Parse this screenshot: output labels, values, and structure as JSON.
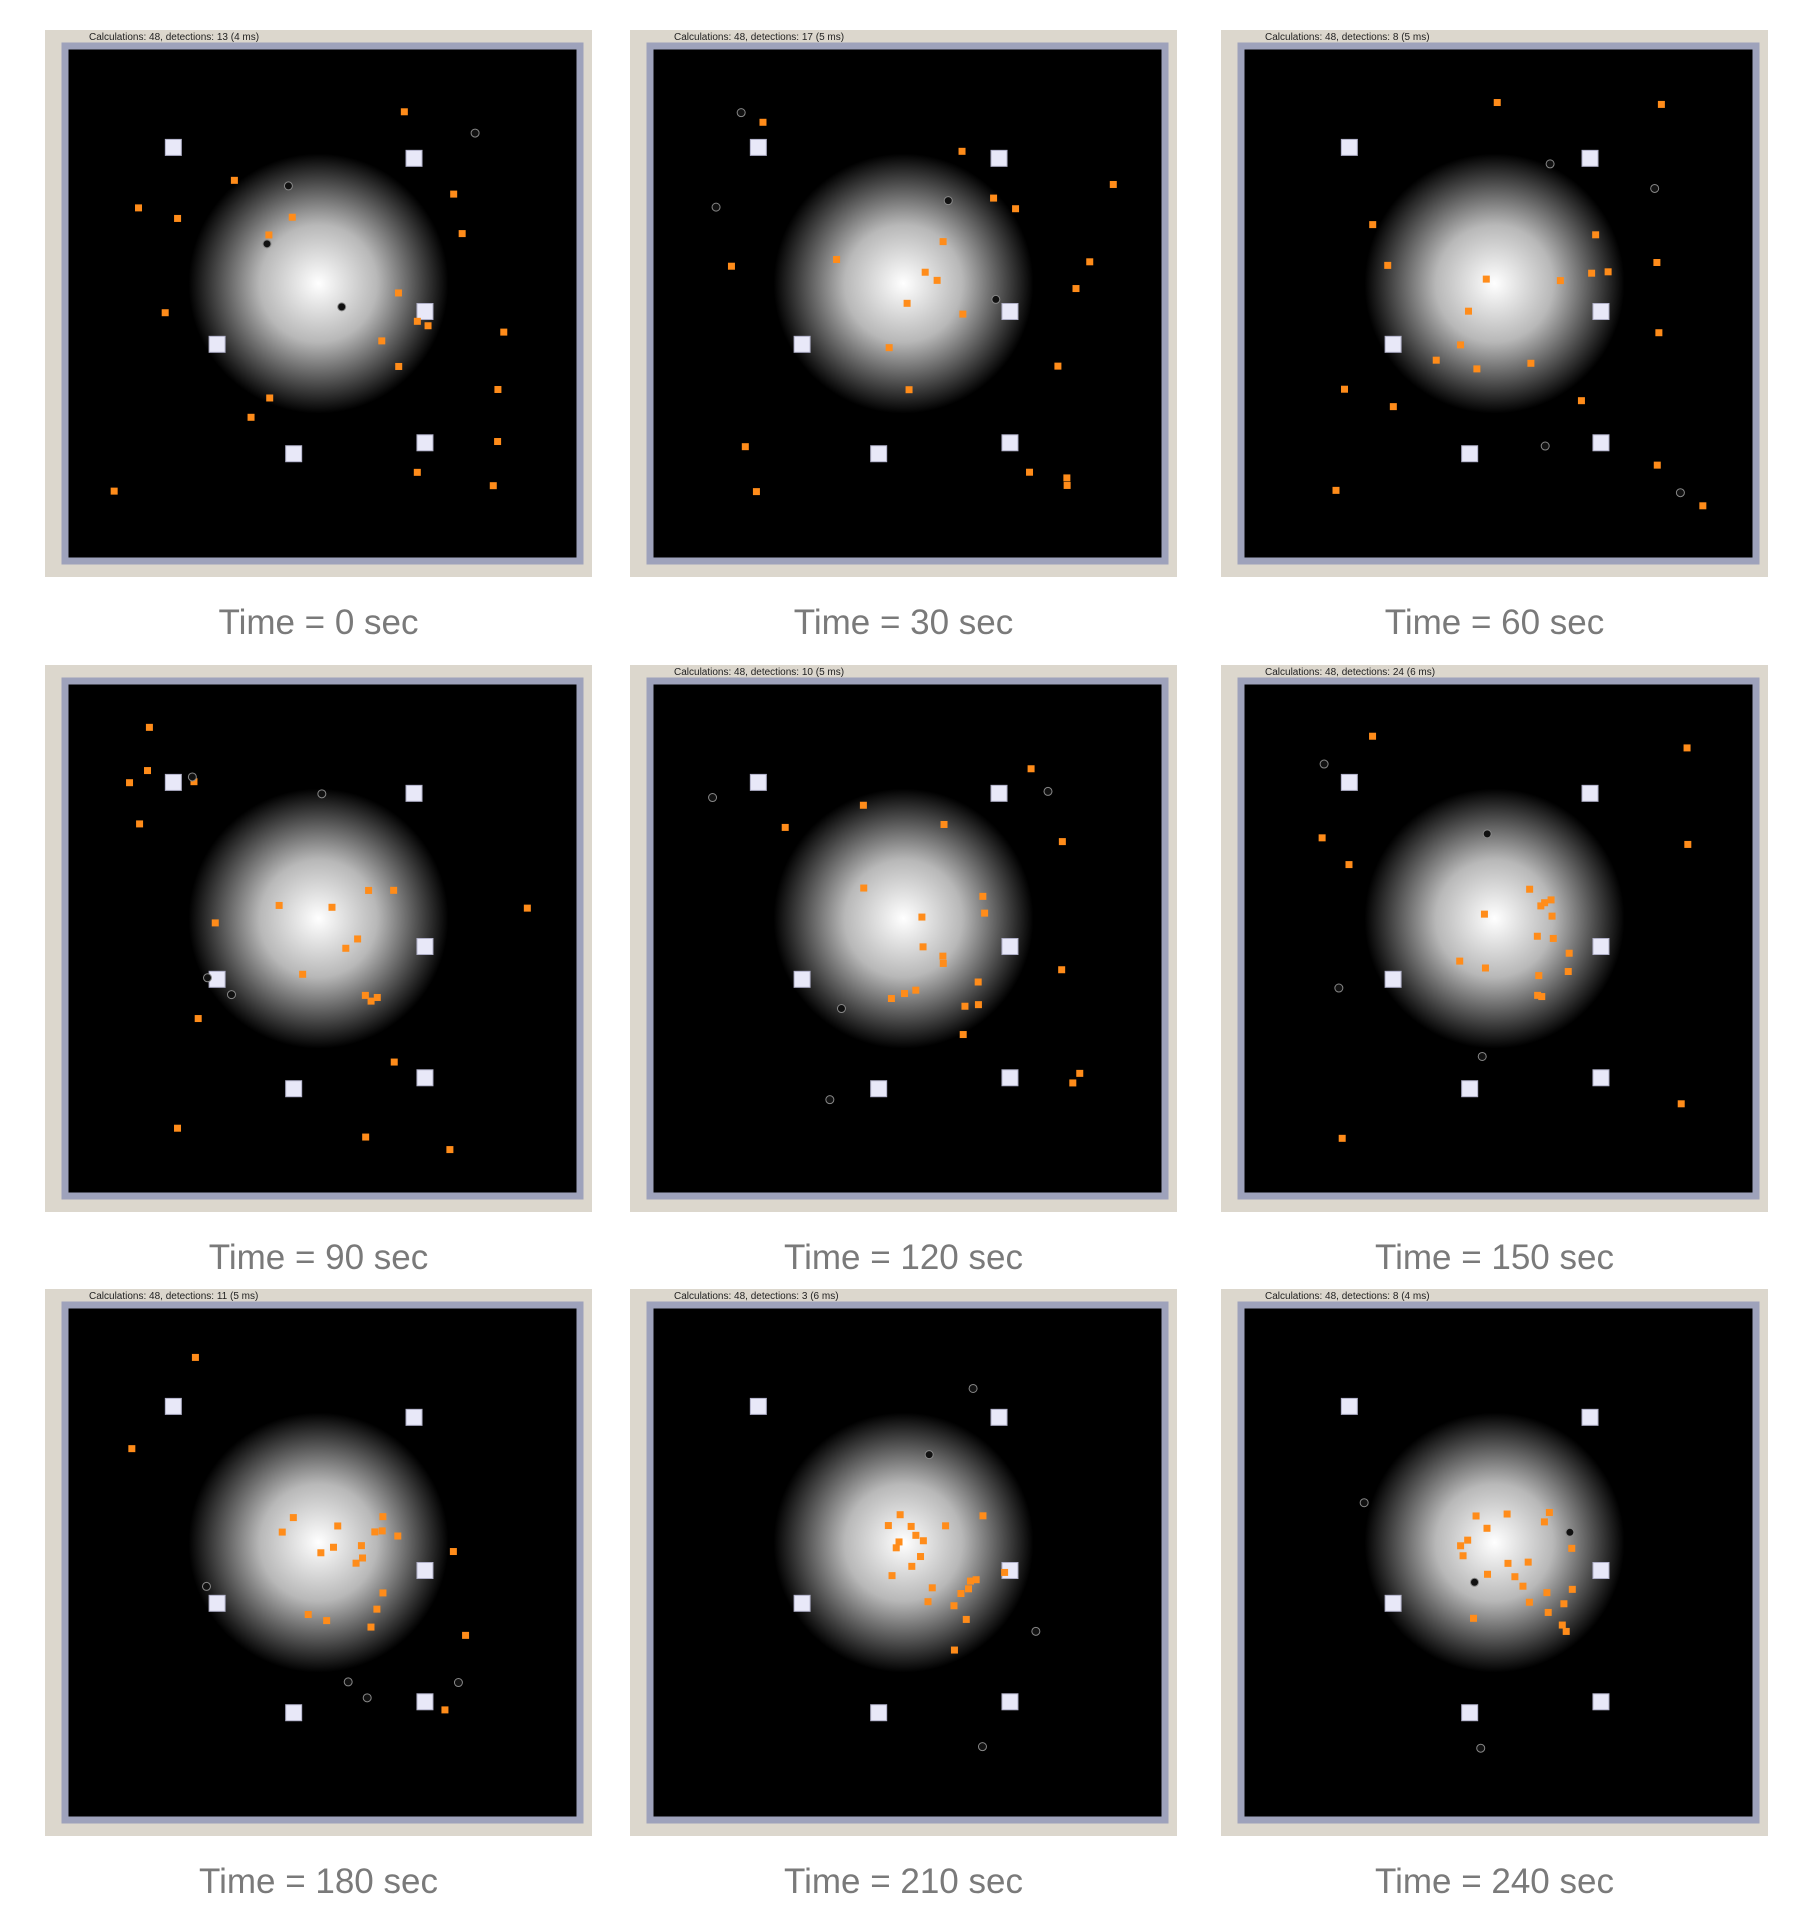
{
  "panels": [
    {
      "caption": "Time = 0 sec",
      "status": "Calculations: 48, detections: 13 (4 ms)"
    },
    {
      "caption": "Time = 30 sec",
      "status": "Calculations: 48, detections: 17 (5 ms)"
    },
    {
      "caption": "Time = 60 sec",
      "status": "Calculations: 48, detections: 8 (5 ms)"
    },
    {
      "caption": "Time = 90 sec"
    },
    {
      "caption": "Time = 120 sec",
      "status": "Calculations: 48, detections: 10 (5 ms)"
    },
    {
      "caption": "Time = 150 sec",
      "status": "Calculations: 48, detections: 24 (6 ms)"
    },
    {
      "caption": "Time = 180 sec",
      "status": "Calculations: 48, detections: 11 (5 ms)"
    },
    {
      "caption": "Time = 210 sec",
      "status": "Calculations: 48, detections: 3 (6 ms)"
    },
    {
      "caption": "Time = 240 sec",
      "status": "Calculations: 48, detections: 8 (4 ms)"
    }
  ]
}
